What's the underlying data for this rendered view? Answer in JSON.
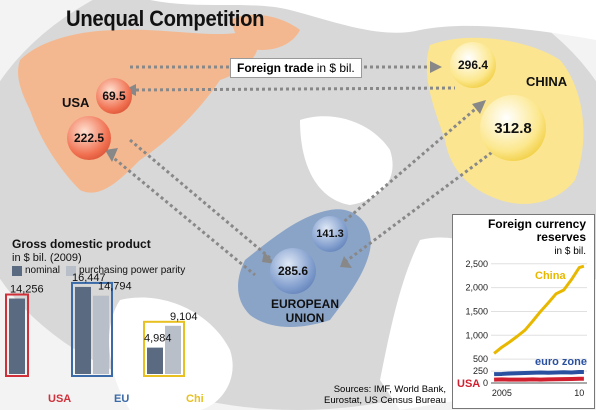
{
  "title": "Unequal Competition",
  "regions": {
    "usa": "USA",
    "china": "CHINA",
    "eu_line1": "EUROPEAN",
    "eu_line2": "UNION"
  },
  "foreign_trade": {
    "label_bold": "Foreign trade",
    "label_rest": "in $ bil.",
    "usa_to_china": "69.5",
    "china_to_usa": "296.4",
    "usa_to_eu": "222.5",
    "eu_to_usa": "285.6",
    "china_to_eu": "312.8",
    "eu_to_china": "141.3"
  },
  "gdp": {
    "heading": "Gross domestic product",
    "subheading": "in $ bil. (2009)",
    "legend": {
      "nominal": "nominal",
      "ppp": "purchasing power parity"
    },
    "colors": {
      "nominal": "#5a6a80",
      "ppp": "#b8bfc8",
      "usa": "#d0303a",
      "eu": "#3a6aa8",
      "china": "#e8c020"
    },
    "chart_data": {
      "type": "bar",
      "categories": [
        "USA",
        "EU",
        "China"
      ],
      "series": [
        {
          "name": "nominal",
          "values": [
            14256,
            16447,
            4984
          ]
        },
        {
          "name": "purchasing power parity",
          "values": [
            14256,
            14794,
            9104
          ]
        }
      ],
      "labels": {
        "USA": [
          "14,256"
        ],
        "EU": [
          "16,447",
          "14,794"
        ],
        "China": [
          "4,984",
          "9,104"
        ]
      },
      "ylim": [
        0,
        17000
      ]
    }
  },
  "reserves": {
    "title_line1": "Foreign currency",
    "title_line2": "reserves",
    "unit": "in $ bil.",
    "series_labels": {
      "china": "China",
      "euro": "euro zone",
      "usa": "USA"
    },
    "colors": {
      "china": "#e8b800",
      "euro": "#2a50a0",
      "usa": "#d02030"
    },
    "chart_data": {
      "type": "line",
      "x": [
        2004.5,
        2005,
        2005.5,
        2006,
        2006.5,
        2007,
        2007.5,
        2008,
        2008.5,
        2009,
        2009.5,
        2010,
        2010.3
      ],
      "series": [
        {
          "name": "China",
          "values": [
            620,
            750,
            860,
            980,
            1110,
            1300,
            1500,
            1680,
            1870,
            1950,
            2170,
            2420,
            2450
          ]
        },
        {
          "name": "euro zone",
          "values": [
            185,
            190,
            200,
            205,
            210,
            215,
            220,
            215,
            220,
            225,
            220,
            230,
            230
          ]
        },
        {
          "name": "USA",
          "values": [
            70,
            75,
            70,
            72,
            70,
            75,
            72,
            75,
            78,
            80,
            85,
            90,
            90
          ]
        }
      ],
      "yticks": [
        "2,500",
        "2,000",
        "1,500",
        "1,000",
        "500",
        "250",
        "0"
      ],
      "ytick_values": [
        2500,
        2000,
        1500,
        1000,
        500,
        250,
        0
      ],
      "xticks": [
        "2005",
        "10"
      ],
      "ylim": [
        0,
        2600
      ],
      "xlim": [
        2004.3,
        2010.5
      ]
    }
  },
  "sources": {
    "line1": "Sources: IMF, World Bank,",
    "line2": "Eurostat, US Census Bureau"
  },
  "map_colors": {
    "usa": "#f4b890",
    "china": "#fbe590",
    "eu": "#8aa4c8",
    "ocean": "#dcdcdc",
    "land": "#ffffff"
  }
}
